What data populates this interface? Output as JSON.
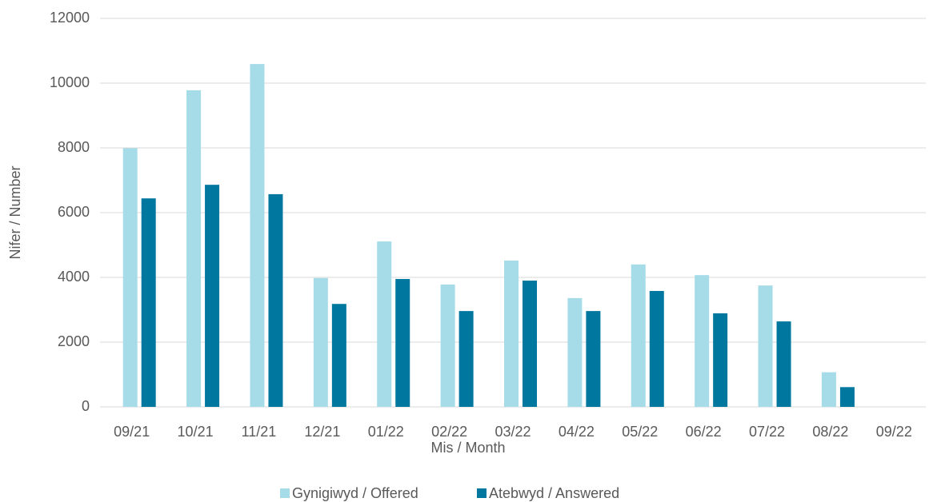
{
  "chart_data": {
    "type": "bar",
    "categories": [
      "09/21",
      "10/21",
      "11/21",
      "12/21",
      "01/22",
      "02/22",
      "03/22",
      "04/22",
      "05/22",
      "06/22",
      "07/22",
      "08/22",
      "09/22"
    ],
    "series": [
      {
        "name": "Gynigiwyd / Offered",
        "color": "#a6dce8",
        "values": [
          7990,
          9780,
          10590,
          3980,
          5110,
          3780,
          4520,
          3360,
          4400,
          4070,
          3750,
          1070,
          null
        ]
      },
      {
        "name": "Atebwyd / Answered",
        "color": "#00779e",
        "values": [
          6440,
          6860,
          6570,
          3180,
          3950,
          2960,
          3900,
          2960,
          3580,
          2890,
          2640,
          610,
          null
        ]
      }
    ],
    "xlabel": "Mis / Month",
    "ylabel": "Nifer / Number",
    "ylim": [
      0,
      12000
    ],
    "yticks": [
      0,
      2000,
      4000,
      6000,
      8000,
      10000,
      12000
    ],
    "grid": true,
    "legend": "bottom"
  }
}
